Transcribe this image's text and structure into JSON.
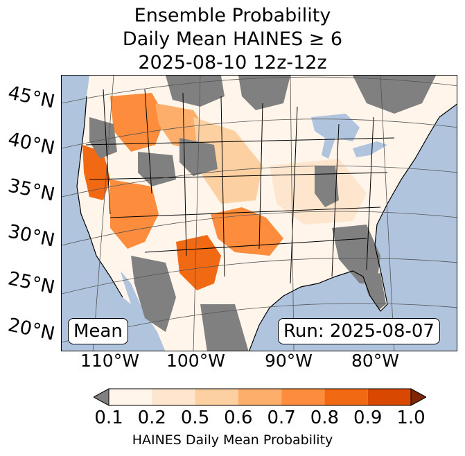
{
  "title": {
    "line1": "Ensemble Probability",
    "line2": "Daily Mean HAINES ≥ 6",
    "line3": "2025-08-10 12z-12z"
  },
  "map": {
    "lat_labels": [
      "45°N",
      "40°N",
      "35°N",
      "30°N",
      "25°N",
      "20°N"
    ],
    "lon_labels": [
      "110°W",
      "100°W",
      "90°W",
      "80°W"
    ],
    "mean_label": "Mean",
    "run_label": "Run: 2025-08-07",
    "colors": {
      "ocean": "#b0c4de",
      "masked": "#808080",
      "land_base": "#fff5eb"
    }
  },
  "colorbar": {
    "label": "HAINES Daily Mean Probability",
    "ticks": [
      "0.1",
      "0.2",
      "0.5",
      "0.6",
      "0.7",
      "0.8",
      "0.9",
      "1.0"
    ],
    "under_color": "#808080",
    "over_color": "#7f2704",
    "colors": [
      "#fff5eb",
      "#fee6ce",
      "#fdd0a2",
      "#fdae6b",
      "#fd8d3c",
      "#f16913",
      "#d94801"
    ]
  }
}
